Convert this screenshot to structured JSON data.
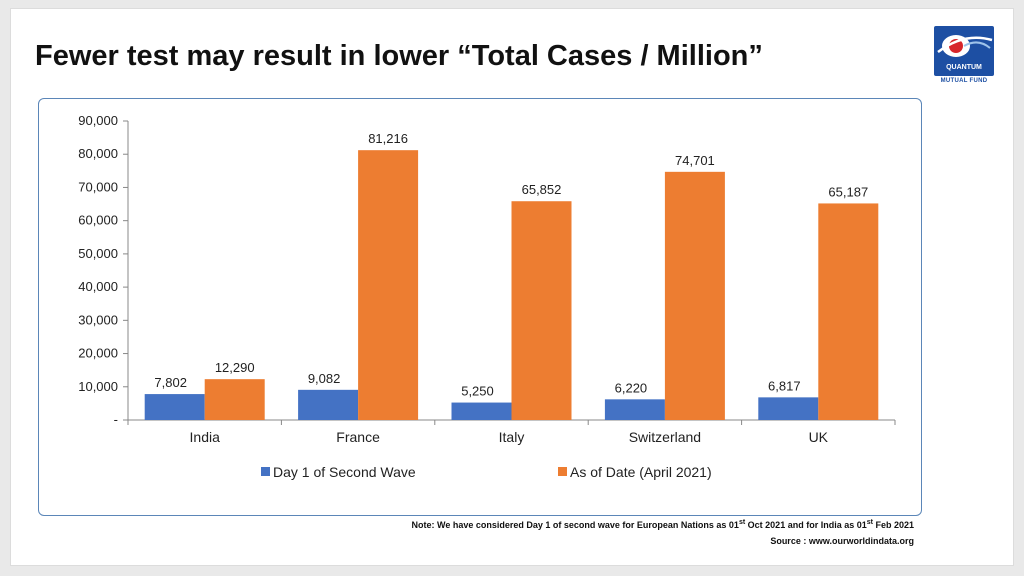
{
  "title": "Fewer test may result in lower “Total Cases / Million”",
  "logo": {
    "line1": "QUANTUM",
    "line2": "MUTUAL FUND"
  },
  "note": {
    "prefix": "Note: We have considered Day 1 of  second wave for European Nations as  01",
    "sup1": "st",
    "middle": " Oct 2021 and for India as 01",
    "sup2": "st",
    "suffix": " Feb 2021"
  },
  "source": "Source : www.ourworldindata.org",
  "colors": {
    "series1": "#4472c4",
    "series2": "#ed7d31",
    "border": "#5b86b8"
  },
  "chart_data": {
    "type": "bar",
    "categories": [
      "India",
      "France",
      "Italy",
      "Switzerland",
      "UK"
    ],
    "series": [
      {
        "name": "Day 1 of Second Wave",
        "values": [
          7802,
          9082,
          5250,
          6220,
          6817
        ],
        "labels": [
          "7,802",
          "9,082",
          "5,250",
          "6,220",
          "6,817"
        ]
      },
      {
        "name": "As of Date (April 2021)",
        "values": [
          12290,
          81216,
          65852,
          74701,
          65187
        ],
        "labels": [
          "12,290",
          "81,216",
          "65,852",
          "74,701",
          "65,187"
        ]
      }
    ],
    "ylim": [
      0,
      90000
    ],
    "yticks": [
      0,
      10000,
      20000,
      30000,
      40000,
      50000,
      60000,
      70000,
      80000,
      90000
    ],
    "ytick_labels": [
      "-",
      "10,000",
      "20,000",
      "30,000",
      "40,000",
      "50,000",
      "60,000",
      "70,000",
      "80,000",
      "90,000"
    ],
    "title": "",
    "xlabel": "",
    "ylabel": "",
    "grid": false,
    "legend": "bottom"
  }
}
